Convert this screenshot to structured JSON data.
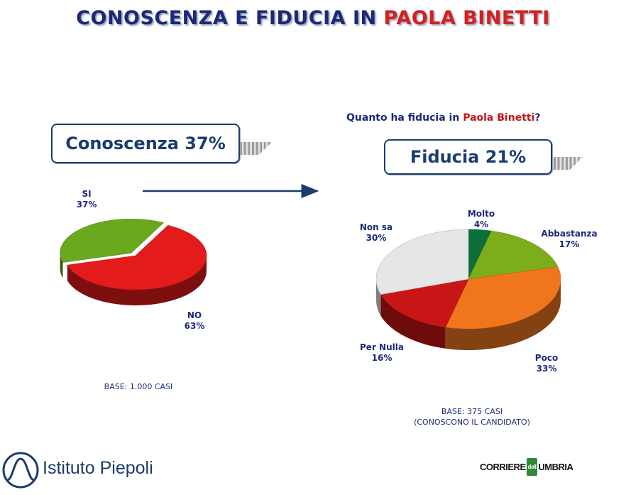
{
  "title": {
    "main": "CONOSCENZA E FIDUCIA IN",
    "accent": "PAOLA BINETTI"
  },
  "question": {
    "prefix": "Quanto ha fiducia in",
    "accent": "Paola Binetti",
    "suffix": "?"
  },
  "badges": {
    "conoscenza": "Conoscenza 37%",
    "fiducia": "Fiducia 21%"
  },
  "colors": {
    "title": "#1b2a78",
    "accent": "#d32020",
    "si": "#6aa81e",
    "no": "#e41b1b",
    "molto": "#0e6e3a",
    "abbastanza": "#7cae1c",
    "poco": "#f0761e",
    "per_nulla": "#c81616",
    "non_sa": "#e6e6e6"
  },
  "bases": {
    "left": "BASE: 1.000 CASI",
    "right_line1": "BASE: 375 CASI",
    "right_line2": "(CONOSCONO IL CANDIDATO)"
  },
  "logos": {
    "left": "Istituto Piepoli",
    "right_a": "CORRIERE",
    "right_mid": "dell",
    "right_b": "UMBRIA"
  },
  "chart_data": [
    {
      "type": "pie",
      "title": "Conoscenza 37%",
      "labels": [
        "SI",
        "NO"
      ],
      "values": [
        37,
        63
      ],
      "value_labels": [
        "37%",
        "63%"
      ]
    },
    {
      "type": "pie",
      "title": "Fiducia 21%",
      "labels": [
        "Molto",
        "Abbastanza",
        "Poco",
        "Per Nulla",
        "Non sa"
      ],
      "values": [
        4,
        17,
        33,
        16,
        30
      ],
      "value_labels": [
        "4%",
        "17%",
        "33%",
        "16%",
        "30%"
      ]
    }
  ]
}
